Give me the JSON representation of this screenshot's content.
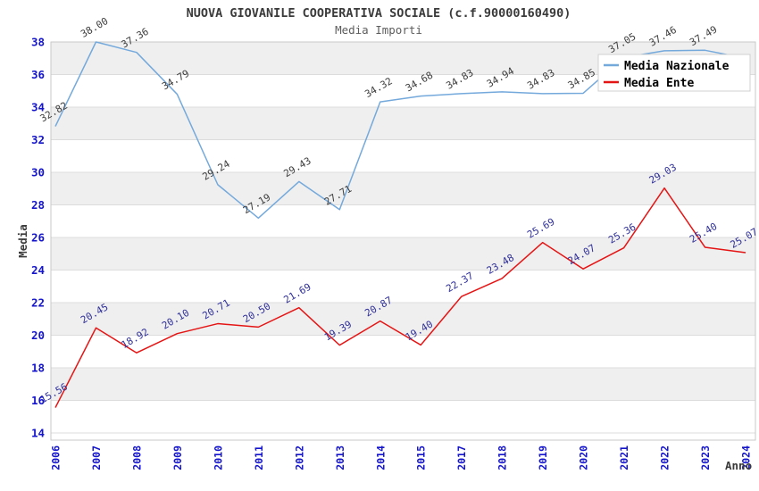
{
  "header": {
    "title": "NUOVA GIOVANILE COOPERATIVA SOCIALE (c.f.90000160490)",
    "subtitle": "Media Importi"
  },
  "chart_data": {
    "type": "line",
    "title": "NUOVA GIOVANILE COOPERATIVA SOCIALE (c.f.90000160490)",
    "subtitle": "Media Importi",
    "xlabel": "Anno",
    "ylabel": "Media",
    "categories": [
      "2006",
      "2007",
      "2008",
      "2009",
      "2010",
      "2011",
      "2012",
      "2013",
      "2014",
      "2015",
      "2017",
      "2018",
      "2019",
      "2020",
      "2021",
      "2022",
      "2023",
      "2024"
    ],
    "series": [
      {
        "name": "Media Nazionale",
        "color": "#74a9dc",
        "label_color": "#3d3d3d",
        "values": [
          32.82,
          38.0,
          37.36,
          34.79,
          29.24,
          27.19,
          29.43,
          27.71,
          34.32,
          34.68,
          34.83,
          34.94,
          34.83,
          34.85,
          37.05,
          37.46,
          37.49,
          37.0
        ],
        "labels": [
          "32.82",
          "38.00",
          "37.36",
          "34.79",
          "29.24",
          "27.19",
          "29.43",
          "27.71",
          "34.32",
          "34.68",
          "34.83",
          "34.94",
          "34.83",
          "34.85",
          "37.05",
          "37.46",
          "37.49",
          ""
        ]
      },
      {
        "name": "Media Ente",
        "color": "#e51414",
        "label_color": "#30309a",
        "values": [
          15.56,
          20.45,
          18.92,
          20.1,
          20.71,
          20.5,
          21.69,
          19.39,
          20.87,
          19.4,
          22.37,
          23.48,
          25.69,
          24.07,
          25.36,
          29.03,
          25.4,
          25.07
        ],
        "labels": [
          "15.56",
          "20.45",
          "18.92",
          "20.10",
          "20.71",
          "20.50",
          "21.69",
          "19.39",
          "20.87",
          "19.40",
          "22.37",
          "23.48",
          "25.69",
          "24.07",
          "25.36",
          "29.03",
          "25.40",
          "25.07"
        ]
      }
    ],
    "yticks": [
      14,
      16,
      18,
      20,
      22,
      24,
      26,
      28,
      30,
      32,
      34,
      36,
      38
    ],
    "ylim": [
      13.6,
      38
    ],
    "grid": true,
    "legend_position": "upper right",
    "colors": {
      "tick_label": "#1414cc",
      "gridline": "#dcdcdc",
      "band": "#efefef",
      "frame": "#c9c9c9",
      "legend_border": "#d0d0d0"
    }
  }
}
